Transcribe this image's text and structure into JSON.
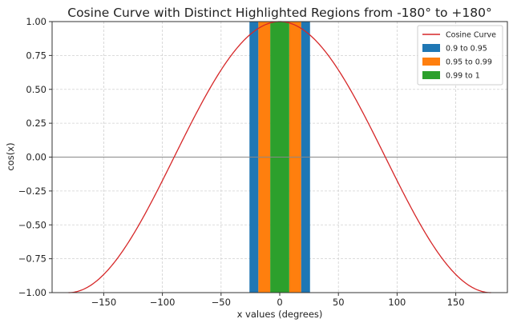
{
  "chart_data": {
    "type": "line",
    "title": "Cosine Curve with Distinct Highlighted Regions from -180° to +180°",
    "xlabel": "x values (degrees)",
    "ylabel": "cos(x)",
    "xlim": [
      -194,
      194
    ],
    "ylim": [
      -1.0,
      1.0
    ],
    "grid": true,
    "legend_position": "top-right",
    "x_ticks": [
      -150,
      -100,
      -50,
      0,
      50,
      100,
      150
    ],
    "x_tick_labels": [
      "−150",
      "−100",
      "−50",
      "0",
      "50",
      "100",
      "150"
    ],
    "y_ticks": [
      -1.0,
      -0.75,
      -0.5,
      -0.25,
      0.0,
      0.25,
      0.5,
      0.75,
      1.0
    ],
    "y_tick_labels": [
      "−1.00",
      "−0.75",
      "−0.50",
      "−0.25",
      "0.00",
      "0.25",
      "0.50",
      "0.75",
      "1.00"
    ],
    "zero_line": true,
    "series": [
      {
        "name": "Cosine Curve",
        "function": "cos",
        "x_range": [
          -180,
          180
        ],
        "color": "#d62728"
      }
    ],
    "regions": [
      {
        "name": "0.9 to 0.95",
        "x_ranges": [
          [
            -25.8,
            -18.2
          ],
          [
            18.2,
            25.8
          ]
        ],
        "color": "#1f77b4"
      },
      {
        "name": "0.95 to 0.99",
        "x_ranges": [
          [
            -18.2,
            -8.1
          ],
          [
            8.1,
            18.2
          ]
        ],
        "color": "#ff7f0e"
      },
      {
        "name": "0.99 to 1",
        "x_ranges": [
          [
            -8.1,
            8.1
          ]
        ],
        "color": "#2ca02c"
      }
    ],
    "legend": [
      {
        "label": "Cosine Curve",
        "kind": "line",
        "color": "#d62728"
      },
      {
        "label": "0.9 to 0.95",
        "kind": "patch",
        "color": "#1f77b4"
      },
      {
        "label": "0.95 to 0.99",
        "kind": "patch",
        "color": "#ff7f0e"
      },
      {
        "label": "0.99 to 1",
        "kind": "patch",
        "color": "#2ca02c"
      }
    ]
  }
}
